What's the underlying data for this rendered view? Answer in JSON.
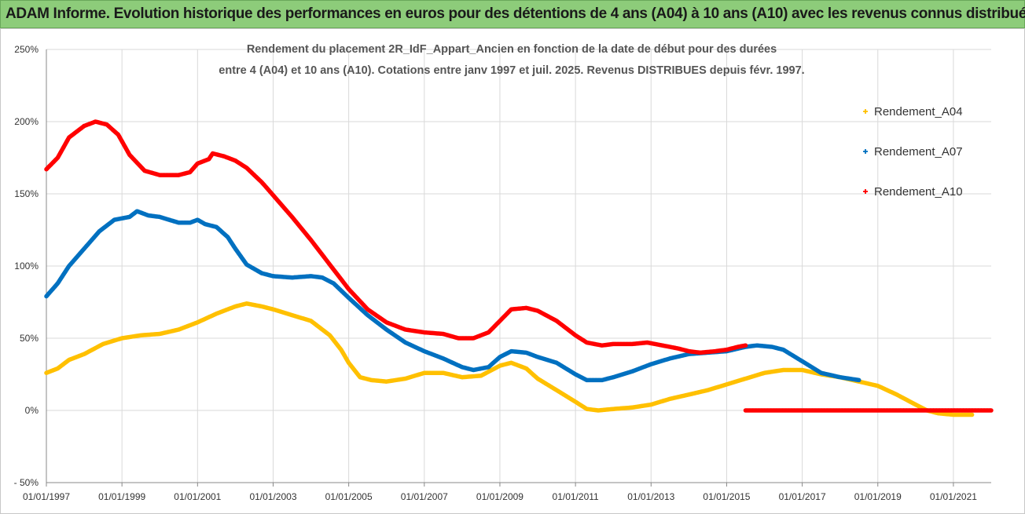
{
  "banner": {
    "title": "ADAM Informe. Evolution historique des performances en euros pour des détentions de 4 ans (A04) à 10 ans (A10) avec les revenus connus distribués"
  },
  "colors": {
    "banner_bg": "#8dcc7a",
    "A04": "#ffc000",
    "A07": "#0070c0",
    "A10": "#ff0000",
    "grid": "#d9d9d9"
  },
  "chart_data": {
    "type": "line",
    "title": "Rendement du placement 2R_IdF_Appart_Ancien en fonction de la date de début pour des durées",
    "subtitle": "entre 4 (A04) et 10 ans (A10).  Cotations entre janv 1997 et juil. 2025. Revenus DISTRIBUES depuis févr. 1997.",
    "xlabel": "",
    "ylabel": "",
    "xlim": [
      1997.0,
      2022.0
    ],
    "ylim": [
      -50,
      250
    ],
    "y_ticks": [
      -50,
      0,
      50,
      100,
      150,
      200,
      250
    ],
    "y_tick_labels": [
      "- 50%",
      "0%",
      "50%",
      "100%",
      "150%",
      "200%",
      "250%"
    ],
    "x_ticks": [
      1997,
      1999,
      2001,
      2003,
      2005,
      2007,
      2009,
      2011,
      2013,
      2015,
      2017,
      2019,
      2021
    ],
    "x_tick_labels": [
      "01/01/1997",
      "01/01/1999",
      "01/01/2001",
      "01/01/2003",
      "01/01/2005",
      "01/01/2007",
      "01/01/2009",
      "01/01/2011",
      "01/01/2013",
      "01/01/2015",
      "01/01/2017",
      "01/01/2019",
      "01/01/2021"
    ],
    "grid": true,
    "legend_position": "right",
    "series": [
      {
        "name": "Rendement_A04",
        "key": "A04",
        "points": [
          [
            1997.0,
            26
          ],
          [
            1997.3,
            29
          ],
          [
            1997.6,
            35
          ],
          [
            1998.0,
            39
          ],
          [
            1998.5,
            46
          ],
          [
            1999.0,
            50
          ],
          [
            1999.5,
            52
          ],
          [
            2000.0,
            53
          ],
          [
            2000.5,
            56
          ],
          [
            2001.0,
            61
          ],
          [
            2001.5,
            67
          ],
          [
            2002.0,
            72
          ],
          [
            2002.3,
            74
          ],
          [
            2002.7,
            72
          ],
          [
            2003.0,
            70
          ],
          [
            2003.5,
            66
          ],
          [
            2004.0,
            62
          ],
          [
            2004.5,
            52
          ],
          [
            2004.8,
            42
          ],
          [
            2005.0,
            33
          ],
          [
            2005.3,
            23
          ],
          [
            2005.6,
            21
          ],
          [
            2006.0,
            20
          ],
          [
            2006.5,
            22
          ],
          [
            2007.0,
            26
          ],
          [
            2007.5,
            26
          ],
          [
            2008.0,
            23
          ],
          [
            2008.5,
            24
          ],
          [
            2009.0,
            31
          ],
          [
            2009.3,
            33
          ],
          [
            2009.7,
            29
          ],
          [
            2010.0,
            22
          ],
          [
            2010.5,
            14
          ],
          [
            2011.0,
            6
          ],
          [
            2011.3,
            1
          ],
          [
            2011.6,
            0
          ],
          [
            2012.0,
            1
          ],
          [
            2012.5,
            2
          ],
          [
            2013.0,
            4
          ],
          [
            2013.5,
            8
          ],
          [
            2014.0,
            11
          ],
          [
            2014.5,
            14
          ],
          [
            2015.0,
            18
          ],
          [
            2015.5,
            22
          ],
          [
            2016.0,
            26
          ],
          [
            2016.5,
            28
          ],
          [
            2017.0,
            28
          ],
          [
            2017.5,
            25
          ],
          [
            2018.0,
            23
          ],
          [
            2018.5,
            20
          ],
          [
            2019.0,
            17
          ],
          [
            2019.5,
            11
          ],
          [
            2020.0,
            4
          ],
          [
            2020.3,
            0
          ],
          [
            2020.6,
            -2
          ],
          [
            2021.0,
            -3
          ],
          [
            2021.5,
            -3
          ]
        ]
      },
      {
        "name": "Rendement_A07",
        "key": "A07",
        "points": [
          [
            1997.0,
            79
          ],
          [
            1997.3,
            88
          ],
          [
            1997.6,
            100
          ],
          [
            1998.0,
            112
          ],
          [
            1998.4,
            124
          ],
          [
            1998.8,
            132
          ],
          [
            1999.2,
            134
          ],
          [
            1999.4,
            138
          ],
          [
            1999.7,
            135
          ],
          [
            2000.0,
            134
          ],
          [
            2000.5,
            130
          ],
          [
            2000.8,
            130
          ],
          [
            2001.0,
            132
          ],
          [
            2001.2,
            129
          ],
          [
            2001.5,
            127
          ],
          [
            2001.8,
            120
          ],
          [
            2002.0,
            112
          ],
          [
            2002.3,
            101
          ],
          [
            2002.7,
            95
          ],
          [
            2003.0,
            93
          ],
          [
            2003.5,
            92
          ],
          [
            2004.0,
            93
          ],
          [
            2004.3,
            92
          ],
          [
            2004.6,
            88
          ],
          [
            2005.0,
            78
          ],
          [
            2005.5,
            66
          ],
          [
            2006.0,
            56
          ],
          [
            2006.5,
            47
          ],
          [
            2007.0,
            41
          ],
          [
            2007.5,
            36
          ],
          [
            2008.0,
            30
          ],
          [
            2008.3,
            28
          ],
          [
            2008.7,
            30
          ],
          [
            2009.0,
            37
          ],
          [
            2009.3,
            41
          ],
          [
            2009.7,
            40
          ],
          [
            2010.0,
            37
          ],
          [
            2010.5,
            33
          ],
          [
            2011.0,
            25
          ],
          [
            2011.3,
            21
          ],
          [
            2011.7,
            21
          ],
          [
            2012.0,
            23
          ],
          [
            2012.5,
            27
          ],
          [
            2013.0,
            32
          ],
          [
            2013.5,
            36
          ],
          [
            2014.0,
            39
          ],
          [
            2014.5,
            40
          ],
          [
            2015.0,
            41
          ],
          [
            2015.5,
            44
          ],
          [
            2015.8,
            45
          ],
          [
            2016.2,
            44
          ],
          [
            2016.5,
            42
          ],
          [
            2017.0,
            34
          ],
          [
            2017.5,
            26
          ],
          [
            2018.0,
            23
          ],
          [
            2018.5,
            21
          ]
        ]
      },
      {
        "name": "Rendement_A10",
        "key": "A10",
        "points": [
          [
            1997.0,
            167
          ],
          [
            1997.3,
            175
          ],
          [
            1997.6,
            189
          ],
          [
            1998.0,
            197
          ],
          [
            1998.3,
            200
          ],
          [
            1998.6,
            198
          ],
          [
            1998.9,
            191
          ],
          [
            1999.2,
            177
          ],
          [
            1999.6,
            166
          ],
          [
            2000.0,
            163
          ],
          [
            2000.5,
            163
          ],
          [
            2000.8,
            165
          ],
          [
            2001.0,
            171
          ],
          [
            2001.3,
            174
          ],
          [
            2001.4,
            178
          ],
          [
            2001.7,
            176
          ],
          [
            2002.0,
            173
          ],
          [
            2002.3,
            168
          ],
          [
            2002.7,
            158
          ],
          [
            2003.0,
            149
          ],
          [
            2003.5,
            134
          ],
          [
            2004.0,
            118
          ],
          [
            2004.5,
            101
          ],
          [
            2005.0,
            84
          ],
          [
            2005.5,
            70
          ],
          [
            2006.0,
            61
          ],
          [
            2006.5,
            56
          ],
          [
            2007.0,
            54
          ],
          [
            2007.5,
            53
          ],
          [
            2007.9,
            50
          ],
          [
            2008.3,
            50
          ],
          [
            2008.7,
            54
          ],
          [
            2009.0,
            62
          ],
          [
            2009.3,
            70
          ],
          [
            2009.7,
            71
          ],
          [
            2010.0,
            69
          ],
          [
            2010.5,
            62
          ],
          [
            2011.0,
            52
          ],
          [
            2011.3,
            47
          ],
          [
            2011.7,
            45
          ],
          [
            2012.0,
            46
          ],
          [
            2012.5,
            46
          ],
          [
            2012.9,
            47
          ],
          [
            2013.3,
            45
          ],
          [
            2013.7,
            43
          ],
          [
            2014.0,
            41
          ],
          [
            2014.3,
            40
          ],
          [
            2014.7,
            41
          ],
          [
            2015.0,
            42
          ],
          [
            2015.3,
            44
          ],
          [
            2015.5,
            45
          ]
        ]
      },
      {
        "name": "Rendement_A10",
        "key": "A10_zero",
        "points": [
          [
            2015.5,
            0
          ],
          [
            2022.0,
            0
          ]
        ]
      }
    ]
  }
}
